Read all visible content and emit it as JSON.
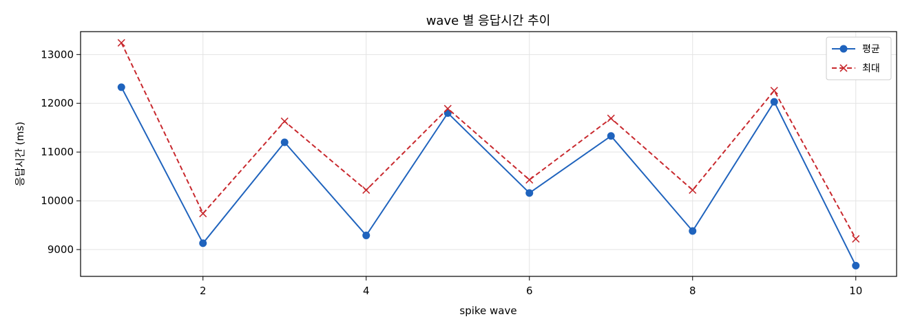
{
  "chart_data": {
    "type": "line",
    "title": "wave 별 응답시간 추이",
    "xlabel": "spike wave",
    "ylabel": "응답시간 (ms)",
    "x": [
      1,
      2,
      3,
      4,
      5,
      6,
      7,
      8,
      9,
      10
    ],
    "xlim": [
      0.5,
      10.5
    ],
    "ylim": [
      8450,
      13470
    ],
    "xticks": [
      2,
      4,
      6,
      8,
      10
    ],
    "yticks": [
      9000,
      10000,
      11000,
      12000,
      13000
    ],
    "grid": true,
    "legend_position": "top-right",
    "series": [
      {
        "name": "평균",
        "values": [
          12330,
          9130,
          11200,
          9290,
          11800,
          10160,
          11330,
          9380,
          12030,
          8670
        ],
        "color": "#1f63bd",
        "linestyle": "solid",
        "marker": "circle"
      },
      {
        "name": "최대",
        "values": [
          13240,
          9740,
          11630,
          10220,
          11890,
          10430,
          11690,
          10220,
          12260,
          9220
        ],
        "color": "#c8282d",
        "linestyle": "dashed",
        "marker": "x"
      }
    ]
  }
}
